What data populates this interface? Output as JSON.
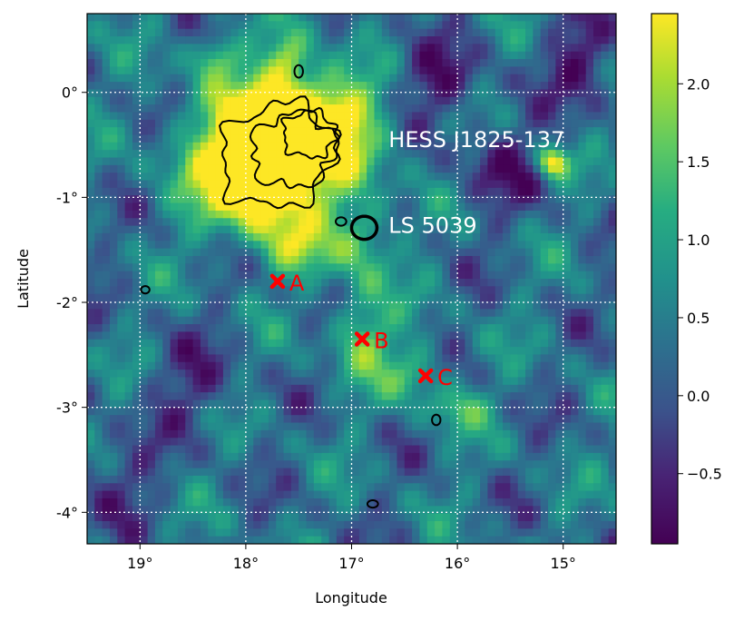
{
  "chart_data": {
    "type": "heatmap",
    "xlabel": "Longitude",
    "ylabel": "Latitude",
    "xlim": [
      19.5,
      14.5
    ],
    "ylim": [
      -4.3,
      0.75
    ],
    "x_ticks": [
      {
        "value": 19,
        "label": "19°"
      },
      {
        "value": 18,
        "label": "18°"
      },
      {
        "value": 17,
        "label": "17°"
      },
      {
        "value": 16,
        "label": "16°"
      },
      {
        "value": 15,
        "label": "15°"
      }
    ],
    "y_ticks": [
      {
        "value": 0,
        "label": "0°"
      },
      {
        "value": -1,
        "label": "-1°"
      },
      {
        "value": -2,
        "label": "-2°"
      },
      {
        "value": -3,
        "label": "-3°"
      },
      {
        "value": -4,
        "label": "-4°"
      }
    ],
    "grid": true,
    "colormap": "viridis",
    "colorbar": {
      "range": [
        -0.95,
        2.45
      ],
      "ticks": [
        {
          "value": 2.0,
          "label": "2.0"
        },
        {
          "value": 1.5,
          "label": "1.5"
        },
        {
          "value": 1.0,
          "label": "1.0"
        },
        {
          "value": 0.5,
          "label": "0.5"
        },
        {
          "value": 0.0,
          "label": "0.0"
        },
        {
          "value": -0.5,
          "label": "−0.5"
        }
      ]
    },
    "sources": [
      {
        "name": "HESS J1825-137",
        "lon": 17.75,
        "lat": -0.7,
        "label_lon": 16.65,
        "label_lat": -0.45,
        "color": "#ffffff"
      },
      {
        "name": "LS 5039",
        "lon": 16.88,
        "lat": -1.29,
        "label_lon": 16.65,
        "label_lat": -1.27,
        "color": "#ffffff"
      }
    ],
    "markers": [
      {
        "label": "A",
        "lon": 17.7,
        "lat": -1.8,
        "color": "#ff0000"
      },
      {
        "label": "B",
        "lon": 16.9,
        "lat": -2.35,
        "color": "#ff0000"
      },
      {
        "label": "C",
        "lon": 16.3,
        "lat": -2.7,
        "color": "#ff0000"
      }
    ],
    "hotspots": [
      {
        "lon": 17.75,
        "lat": -0.55,
        "amp": 3.4,
        "sx": 0.5,
        "sy": 0.42
      },
      {
        "lon": 17.3,
        "lat": -0.25,
        "amp": 1.6,
        "sx": 0.45,
        "sy": 0.3
      },
      {
        "lon": 17.95,
        "lat": -1.0,
        "amp": 1.2,
        "sx": 0.35,
        "sy": 0.3
      },
      {
        "lon": 15.1,
        "lat": -0.67,
        "amp": 2.2,
        "sx": 0.1,
        "sy": 0.1
      },
      {
        "lon": 16.9,
        "lat": -1.4,
        "amp": 1.2,
        "sx": 0.2,
        "sy": 0.3
      },
      {
        "lon": 17.5,
        "lat": -1.5,
        "amp": 1.0,
        "sx": 0.25,
        "sy": 0.2
      },
      {
        "lon": 16.9,
        "lat": -2.3,
        "amp": 1.3,
        "sx": 0.2,
        "sy": 0.3
      },
      {
        "lon": 16.4,
        "lat": -2.65,
        "amp": 1.0,
        "sx": 0.2,
        "sy": 0.2
      },
      {
        "lon": 16.0,
        "lat": -3.0,
        "amp": 0.9,
        "sx": 0.2,
        "sy": 0.15
      },
      {
        "lon": 18.3,
        "lat": 0.35,
        "amp": 1.2,
        "sx": 0.15,
        "sy": 0.15
      },
      {
        "lon": 17.6,
        "lat": 0.3,
        "amp": 1.4,
        "sx": 0.15,
        "sy": 0.2
      },
      {
        "lon": 16.2,
        "lat": 0.1,
        "amp": -1.0,
        "sx": 0.3,
        "sy": 0.25
      },
      {
        "lon": 15.6,
        "lat": -0.7,
        "amp": -0.8,
        "sx": 0.3,
        "sy": 0.3
      },
      {
        "lon": 14.8,
        "lat": 0.3,
        "amp": -1.0,
        "sx": 0.25,
        "sy": 0.3
      },
      {
        "lon": 18.5,
        "lat": -2.8,
        "amp": -0.7,
        "sx": 0.3,
        "sy": 0.3
      },
      {
        "lon": 19.3,
        "lat": -3.7,
        "amp": -0.7,
        "sx": 0.3,
        "sy": 0.3
      }
    ],
    "contours": [
      {
        "name": "outer",
        "lon": 17.7,
        "lat": -0.6,
        "rx": 0.55,
        "ry": 0.48,
        "rot": -25
      },
      {
        "name": "middle",
        "lon": 17.55,
        "lat": -0.55,
        "rx": 0.4,
        "ry": 0.35,
        "rot": -15
      },
      {
        "name": "inner",
        "lon": 17.4,
        "lat": -0.4,
        "rx": 0.25,
        "ry": 0.22,
        "rot": 0
      },
      {
        "name": "ls5039",
        "lon": 16.88,
        "lat": -1.29,
        "rx": 0.12,
        "ry": 0.11,
        "rot": 0
      },
      {
        "name": "small-1",
        "lon": 18.95,
        "lat": -1.88,
        "rx": 0.04,
        "ry": 0.035,
        "rot": 0
      },
      {
        "name": "small-2",
        "lon": 16.2,
        "lat": -3.12,
        "rx": 0.04,
        "ry": 0.05,
        "rot": 0
      },
      {
        "name": "small-3",
        "lon": 16.8,
        "lat": -3.92,
        "rx": 0.05,
        "ry": 0.035,
        "rot": 0
      },
      {
        "name": "small-4",
        "lon": 17.5,
        "lat": 0.2,
        "rx": 0.04,
        "ry": 0.06,
        "rot": 0
      },
      {
        "name": "small-5",
        "lon": 17.1,
        "lat": -1.23,
        "rx": 0.05,
        "ry": 0.04,
        "rot": 0
      }
    ]
  }
}
